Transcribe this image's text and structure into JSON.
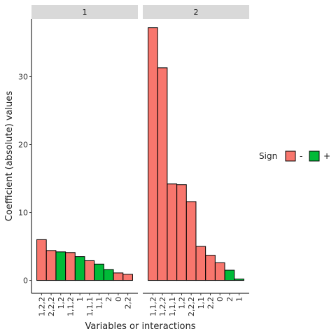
{
  "chart_data": {
    "type": "bar",
    "xlabel": "Variables or interactions",
    "ylabel": "Coefficient (absolute) values",
    "ylim": [
      -1.9,
      38.5
    ],
    "yticks": [
      0,
      10,
      20,
      30
    ],
    "legend": {
      "title": "Sign",
      "placement": "right",
      "items": [
        {
          "label": "-",
          "color": "#F8766D"
        },
        {
          "label": "+",
          "color": "#00BA38"
        }
      ]
    },
    "panels": [
      {
        "strip": "1",
        "bars": [
          {
            "category": "1,2,2",
            "value": 6.0,
            "sign": "-"
          },
          {
            "category": "2,2,2",
            "value": 4.4,
            "sign": "-"
          },
          {
            "category": "1,2",
            "value": 4.2,
            "sign": "+"
          },
          {
            "category": "1,1,2",
            "value": 4.1,
            "sign": "-"
          },
          {
            "category": "1",
            "value": 3.5,
            "sign": "+"
          },
          {
            "category": "1,1,1",
            "value": 2.9,
            "sign": "-"
          },
          {
            "category": "1,1",
            "value": 2.4,
            "sign": "+"
          },
          {
            "category": "2",
            "value": 1.6,
            "sign": "+"
          },
          {
            "category": "0",
            "value": 1.1,
            "sign": "-"
          },
          {
            "category": "2,2",
            "value": 0.9,
            "sign": "-"
          }
        ]
      },
      {
        "strip": "2",
        "bars": [
          {
            "category": "1,1,2",
            "value": 37.2,
            "sign": "-"
          },
          {
            "category": "1,2,2",
            "value": 31.3,
            "sign": "-"
          },
          {
            "category": "1,1,1",
            "value": 14.2,
            "sign": "-"
          },
          {
            "category": "1,2",
            "value": 14.1,
            "sign": "-"
          },
          {
            "category": "2,2,2",
            "value": 11.6,
            "sign": "-"
          },
          {
            "category": "1,1",
            "value": 5.0,
            "sign": "-"
          },
          {
            "category": "2,2",
            "value": 3.7,
            "sign": "-"
          },
          {
            "category": "0",
            "value": 2.6,
            "sign": "-"
          },
          {
            "category": "2",
            "value": 1.5,
            "sign": "+"
          },
          {
            "category": "1",
            "value": 0.2,
            "sign": "+"
          }
        ]
      }
    ]
  }
}
